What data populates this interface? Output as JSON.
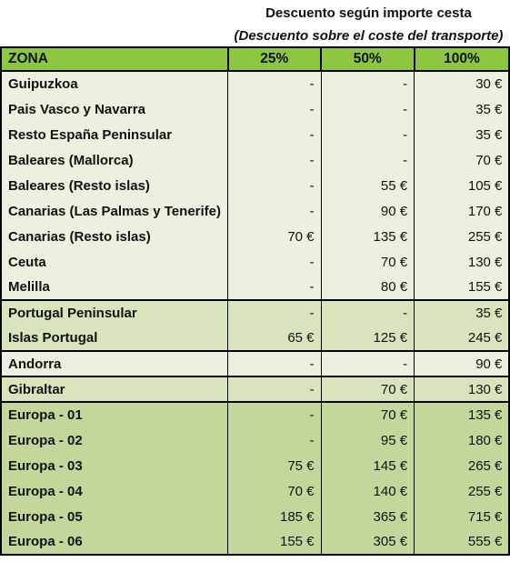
{
  "header": {
    "discount_title": "Descuento según importe cesta",
    "discount_subtitle": "(Descuento sobre el coste del transporte)",
    "zone_label": "ZONA",
    "columns": [
      "25%",
      "50%",
      "100%"
    ]
  },
  "groups": [
    {
      "rows": [
        {
          "zone": "Guipuzkoa",
          "values": [
            "-",
            "-",
            "30 €"
          ]
        },
        {
          "zone": "Pais Vasco y Navarra",
          "values": [
            "-",
            "-",
            "35 €"
          ]
        },
        {
          "zone": "Resto España Peninsular",
          "values": [
            "-",
            "-",
            "35 €"
          ]
        },
        {
          "zone": "Baleares (Mallorca)",
          "values": [
            "-",
            "-",
            "70 €"
          ]
        },
        {
          "zone": "Baleares (Resto islas)",
          "values": [
            "-",
            "55 €",
            "105 €"
          ]
        },
        {
          "zone": "Canarias (Las Palmas y Tenerife)",
          "values": [
            "-",
            "90 €",
            "170 €"
          ]
        },
        {
          "zone": "Canarias (Resto islas)",
          "values": [
            "70 €",
            "135 €",
            "255 €"
          ]
        },
        {
          "zone": "Ceuta",
          "values": [
            "-",
            "70 €",
            "130 €"
          ]
        },
        {
          "zone": "Melilla",
          "values": [
            "-",
            "80 €",
            "155 €"
          ]
        }
      ]
    },
    {
      "rows": [
        {
          "zone": "Portugal Peninsular",
          "values": [
            "-",
            "-",
            "35 €"
          ]
        },
        {
          "zone": "Islas Portugal",
          "values": [
            "65 €",
            "125 €",
            "245 €"
          ]
        }
      ]
    },
    {
      "rows": [
        {
          "zone": "Andorra",
          "values": [
            "-",
            "-",
            "90 €"
          ]
        }
      ]
    },
    {
      "rows": [
        {
          "zone": "Gibraltar",
          "values": [
            "-",
            "70 €",
            "130 €"
          ]
        }
      ]
    },
    {
      "rows": [
        {
          "zone": "Europa - 01",
          "values": [
            "-",
            "70 €",
            "135 €"
          ]
        },
        {
          "zone": "Europa - 02",
          "values": [
            "-",
            "95 €",
            "180 €"
          ]
        },
        {
          "zone": "Europa - 03",
          "values": [
            "75 €",
            "145 €",
            "265 €"
          ]
        },
        {
          "zone": "Europa - 04",
          "values": [
            "70 €",
            "140 €",
            "255 €"
          ]
        },
        {
          "zone": "Europa - 05",
          "values": [
            "185 €",
            "365 €",
            "715 €"
          ]
        },
        {
          "zone": "Europa - 06",
          "values": [
            "155 €",
            "305 €",
            "555 €"
          ]
        }
      ]
    }
  ]
}
